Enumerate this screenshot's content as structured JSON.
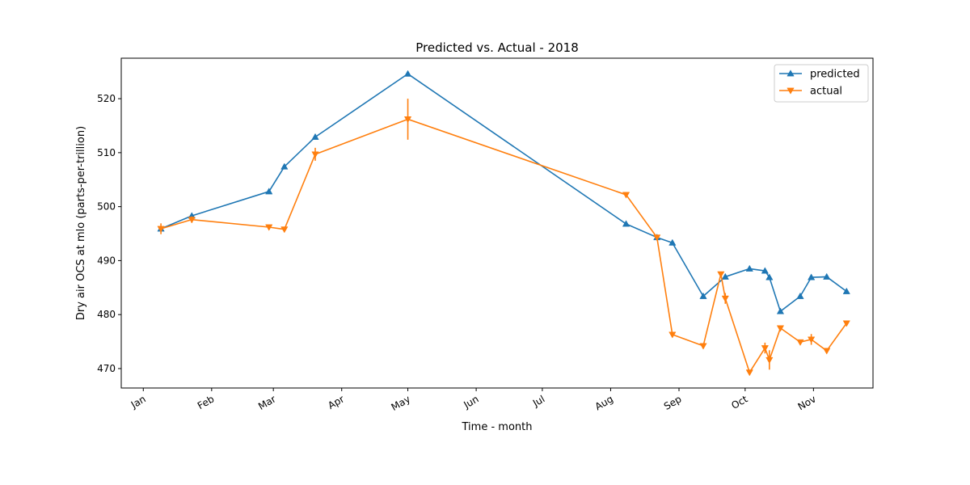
{
  "chart_data": {
    "type": "line",
    "title": "Predicted vs. Actual - 2018",
    "xlabel": "Time - month",
    "ylabel": "Dry air OCS at mlo (parts-per-trillion)",
    "x_ticks": [
      {
        "label": "Jan",
        "date": "2018-01-01"
      },
      {
        "label": "Feb",
        "date": "2018-02-01"
      },
      {
        "label": "Mar",
        "date": "2018-03-01"
      },
      {
        "label": "Apr",
        "date": "2018-04-01"
      },
      {
        "label": "May",
        "date": "2018-05-01"
      },
      {
        "label": "Jun",
        "date": "2018-06-01"
      },
      {
        "label": "Jul",
        "date": "2018-07-01"
      },
      {
        "label": "Aug",
        "date": "2018-08-01"
      },
      {
        "label": "Sep",
        "date": "2018-09-01"
      },
      {
        "label": "Oct",
        "date": "2018-10-01"
      },
      {
        "label": "Nov",
        "date": "2018-11-01"
      }
    ],
    "y_ticks": [
      470,
      480,
      490,
      500,
      510,
      520
    ],
    "xlim": [
      "2017-12-22",
      "2018-11-28"
    ],
    "ylim": [
      466.4,
      527.5
    ],
    "grid": false,
    "legend": "upper-right",
    "series": [
      {
        "name": "predicted",
        "color": "#1f77b4",
        "marker": "triangle-up",
        "points": [
          {
            "x": "2018-01-09",
            "y": 495.9
          },
          {
            "x": "2018-01-23",
            "y": 498.3
          },
          {
            "x": "2018-02-27",
            "y": 502.8
          },
          {
            "x": "2018-03-06",
            "y": 507.4
          },
          {
            "x": "2018-03-20",
            "y": 512.9
          },
          {
            "x": "2018-05-01",
            "y": 524.6
          },
          {
            "x": "2018-08-08",
            "y": 496.8
          },
          {
            "x": "2018-08-22",
            "y": 494.3
          },
          {
            "x": "2018-08-29",
            "y": 493.3
          },
          {
            "x": "2018-09-12",
            "y": 483.4
          },
          {
            "x": "2018-09-22",
            "y": 487.0
          },
          {
            "x": "2018-10-03",
            "y": 488.5
          },
          {
            "x": "2018-10-10",
            "y": 488.1
          },
          {
            "x": "2018-10-12",
            "y": 486.9
          },
          {
            "x": "2018-10-17",
            "y": 480.6
          },
          {
            "x": "2018-10-26",
            "y": 483.4
          },
          {
            "x": "2018-10-31",
            "y": 486.9
          },
          {
            "x": "2018-11-07",
            "y": 487.0
          },
          {
            "x": "2018-11-16",
            "y": 484.3
          }
        ]
      },
      {
        "name": "actual",
        "color": "#ff7f0e",
        "marker": "triangle-down",
        "points": [
          {
            "x": "2018-01-09",
            "y": 495.9,
            "err": 1.0
          },
          {
            "x": "2018-01-23",
            "y": 497.6,
            "err": 0.6
          },
          {
            "x": "2018-02-27",
            "y": 496.2,
            "err": 0.4
          },
          {
            "x": "2018-03-06",
            "y": 495.8,
            "err": 0.3
          },
          {
            "x": "2018-03-20",
            "y": 509.7,
            "err": 1.2
          },
          {
            "x": "2018-05-01",
            "y": 516.2,
            "err": 3.8
          },
          {
            "x": "2018-08-08",
            "y": 502.2,
            "err": 0.4
          },
          {
            "x": "2018-08-22",
            "y": 494.3,
            "err": 0.5
          },
          {
            "x": "2018-08-29",
            "y": 476.3,
            "err": 0.3
          },
          {
            "x": "2018-09-12",
            "y": 474.2,
            "err": 0.3
          },
          {
            "x": "2018-09-20",
            "y": 487.5,
            "err": 0.4
          },
          {
            "x": "2018-09-22",
            "y": 483.0,
            "err": 1.0
          },
          {
            "x": "2018-10-03",
            "y": 469.3,
            "err": 0.4
          },
          {
            "x": "2018-10-10",
            "y": 473.8,
            "err": 1.0
          },
          {
            "x": "2018-10-12",
            "y": 471.6,
            "err": 1.8
          },
          {
            "x": "2018-10-17",
            "y": 477.5,
            "err": 0.4
          },
          {
            "x": "2018-10-26",
            "y": 474.9,
            "err": 0.3
          },
          {
            "x": "2018-10-31",
            "y": 475.4,
            "err": 1.0
          },
          {
            "x": "2018-11-07",
            "y": 473.3,
            "err": 0.3
          },
          {
            "x": "2018-11-16",
            "y": 478.4,
            "err": 0.4
          }
        ]
      }
    ]
  }
}
